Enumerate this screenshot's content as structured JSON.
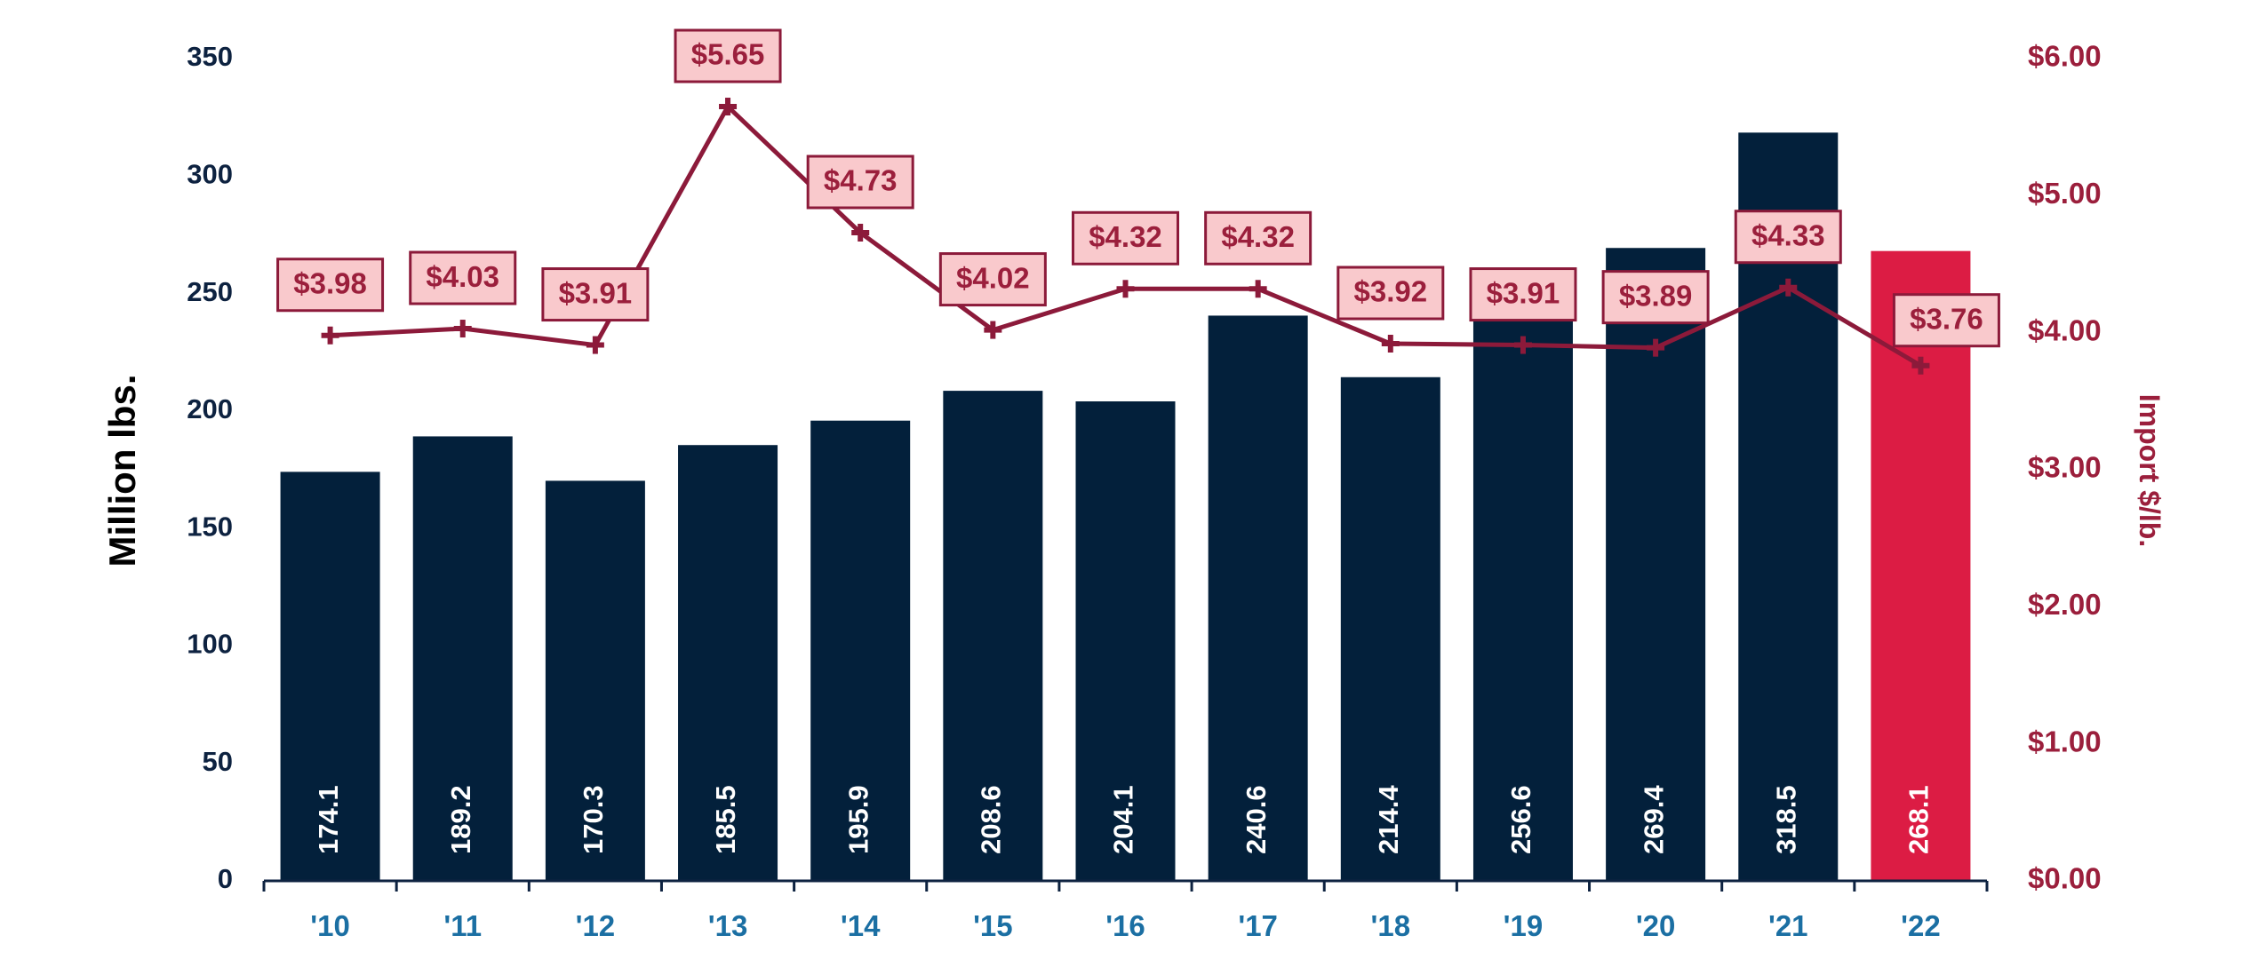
{
  "chart_data": {
    "type": "bar",
    "categories": [
      "'10",
      "'11",
      "'12",
      "'13",
      "'14",
      "'15",
      "'16",
      "'17",
      "'18",
      "'19",
      "'20",
      "'21",
      "'22"
    ],
    "series": [
      {
        "type": "bar",
        "axis": "left",
        "values": [
          174.1,
          189.2,
          170.3,
          185.5,
          195.9,
          208.6,
          204.1,
          240.6,
          214.4,
          256.6,
          269.4,
          318.5,
          268.1
        ],
        "labels": [
          "174.1",
          "189.2",
          "170.3",
          "185.5",
          "195.9",
          "208.6",
          "204.1",
          "240.6",
          "214.4",
          "256.6",
          "269.4",
          "318.5",
          "268.1"
        ],
        "color": "#03203b",
        "highlight_color": "#dc1c44",
        "highlight_index": 12
      },
      {
        "type": "line",
        "axis": "right",
        "values": [
          3.98,
          4.03,
          3.91,
          5.65,
          4.73,
          4.02,
          4.32,
          4.32,
          3.92,
          3.91,
          3.89,
          4.33,
          3.76
        ],
        "labels": [
          "$3.98",
          "$4.03",
          "$3.91",
          "$5.65",
          "$4.73",
          "$4.02",
          "$4.32",
          "$4.32",
          "$3.92",
          "$3.91",
          "$3.89",
          "$4.33",
          "$3.76"
        ],
        "color": "#8c1a3a",
        "label_box_fill": "#f9c9cc"
      }
    ],
    "ylabel": "Million lbs.",
    "y2label": "Import $/lb.",
    "ylim": [
      0,
      350
    ],
    "y2lim": [
      0,
      6
    ],
    "yticks": [
      "0",
      "50",
      "100",
      "150",
      "200",
      "250",
      "300",
      "350"
    ],
    "y2ticks": [
      "$0.00",
      "$1.00",
      "$2.00",
      "$3.00",
      "$4.00",
      "$5.00",
      "$6.00"
    ],
    "grid": false,
    "legend": "none",
    "colors": {
      "left_axis_text": "#0d2240",
      "right_axis_text": "#9b1f3c",
      "x_tick_text": "#1b6fa3"
    }
  }
}
